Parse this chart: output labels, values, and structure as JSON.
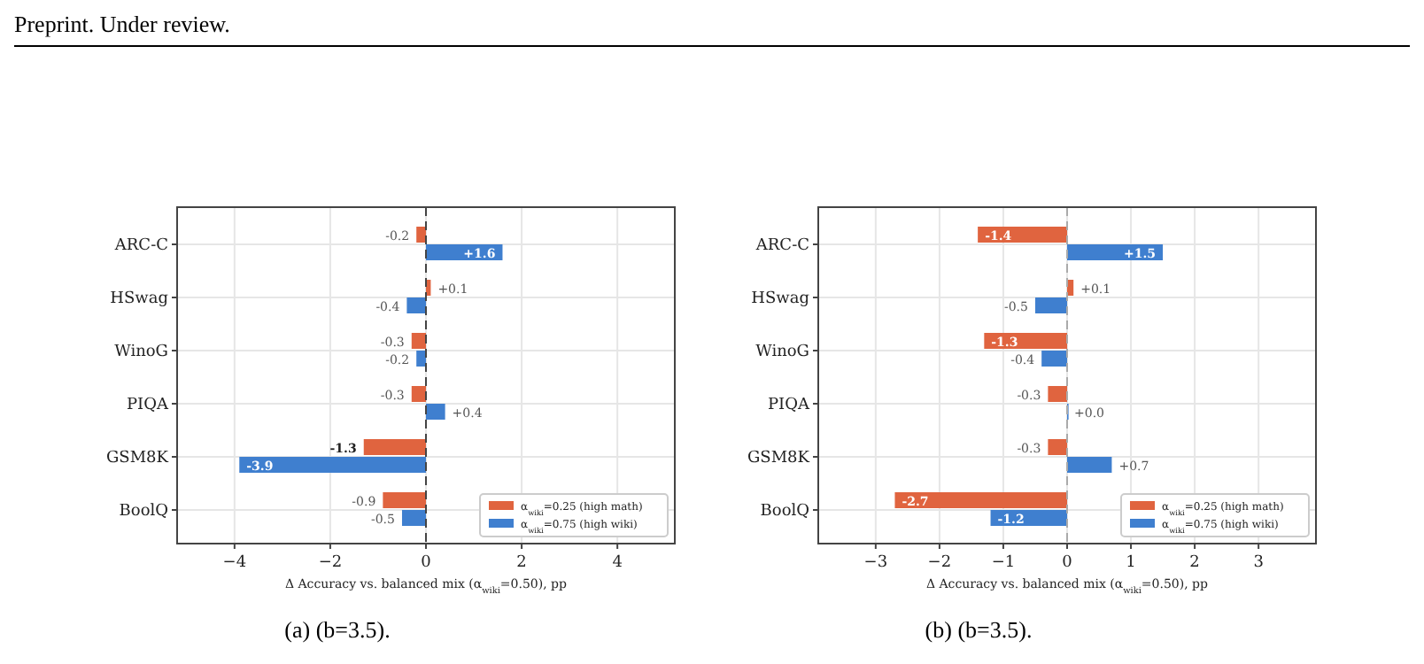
{
  "chart_data": [
    {
      "type": "bar",
      "orientation": "horizontal",
      "title": "(a) (b=3.5).",
      "xlabel": "Δ Accuracy vs. balanced mix (α$_{wiki}$=0.50), pp",
      "categories": [
        "ARC-C",
        "HSwag",
        "WinoG",
        "PIQA",
        "GSM8K",
        "BoolQ"
      ],
      "series": [
        {
          "name": "α$_{wiki}$=0.25 (high math)",
          "color": "#e0643f",
          "values": [
            -0.2,
            0.1,
            -0.3,
            -0.3,
            -1.3,
            -0.9
          ],
          "value_labels": [
            "-0.2",
            "+0.1",
            "-0.3",
            "-0.3",
            "-1.3",
            "-0.9"
          ]
        },
        {
          "name": "α$_{wiki}$=0.75 (high wiki)",
          "color": "#3f7fcf",
          "values": [
            1.6,
            -0.4,
            -0.2,
            0.4,
            -3.9,
            -0.5
          ],
          "value_labels": [
            "+1.6",
            "-0.4",
            "-0.2",
            "+0.4",
            "-3.9",
            "-0.5"
          ]
        }
      ],
      "xlim": [
        -5.2,
        5.2
      ],
      "xticks": [
        {
          "value": -4,
          "label": "−4"
        },
        {
          "value": -2,
          "label": "−2"
        },
        0,
        2,
        4
      ],
      "grid": true,
      "legend": "bottom right",
      "ref_lines": [
        {
          "axis": "x",
          "value": 0,
          "color": "#444444",
          "line_style": "dashed"
        }
      ],
      "annotations": [
        "Preprint. Under review."
      ]
    },
    {
      "type": "bar",
      "orientation": "horizontal",
      "title": "(b) (b=3.5).",
      "xlabel": "Δ Accuracy vs. balanced mix (α$_{wiki}$=0.50), pp",
      "categories": [
        "ARC-C",
        "HSwag",
        "WinoG",
        "PIQA",
        "GSM8K",
        "BoolQ"
      ],
      "series": [
        {
          "name": "α$_{wiki}$=0.25 (high math)",
          "color": "#e0643f",
          "values": [
            -1.4,
            0.1,
            -1.3,
            -0.3,
            -0.3,
            -2.7
          ],
          "value_labels": [
            "-1.4",
            "+0.1",
            "-1.3",
            "-0.3",
            "-0.3",
            "-2.7"
          ]
        },
        {
          "name": "α$_{wiki}$=0.75 (high wiki)",
          "color": "#3f7fcf",
          "values": [
            1.5,
            -0.5,
            -0.4,
            0.0,
            0.7,
            -1.2
          ],
          "value_labels": [
            "+1.5",
            "-0.5",
            "-0.4",
            "+0.0",
            "+0.7",
            "-1.2"
          ]
        }
      ],
      "xlim": [
        -3.9,
        3.9
      ],
      "xticks": [
        {
          "value": -3,
          "label": "−3"
        },
        {
          "value": -2,
          "label": "−2"
        },
        {
          "value": -1,
          "label": "−1"
        },
        0,
        1,
        2,
        3
      ],
      "grid": true,
      "legend": "bottom right",
      "ref_lines": [
        {
          "axis": "x",
          "value": 0,
          "color": "#aaaaaa",
          "line_style": "dashed"
        }
      ]
    }
  ]
}
